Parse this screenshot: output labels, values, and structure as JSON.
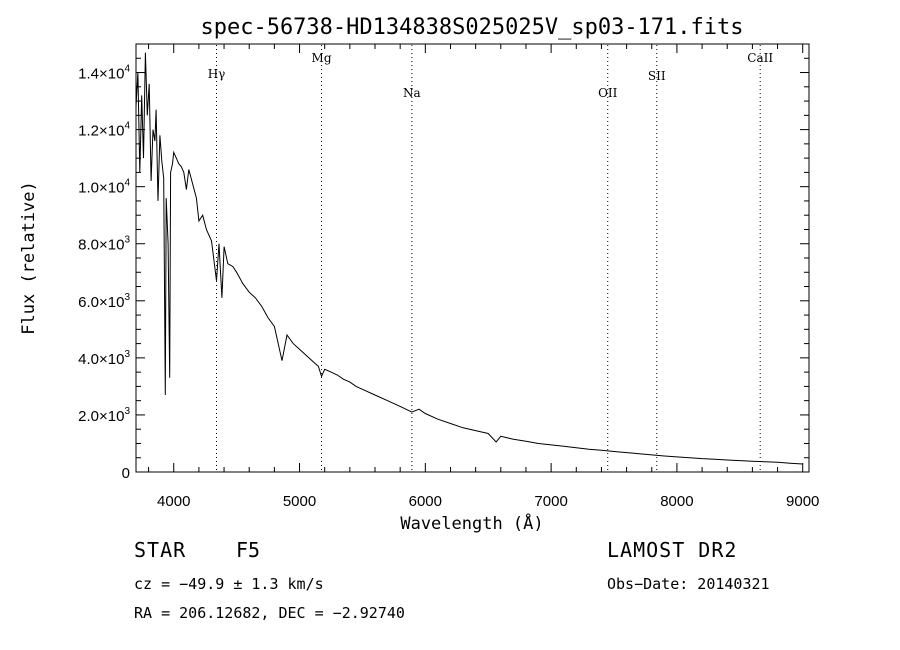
{
  "chart_data": {
    "type": "line",
    "title": "spec-56738-HD134838S025025V_sp03-171.fits",
    "xlabel": "Wavelength (Å)",
    "ylabel": "Flux (relative)",
    "xlim": [
      3700,
      9050
    ],
    "ylim": [
      0,
      15000
    ],
    "x_ticks": [
      4000,
      5000,
      6000,
      7000,
      8000,
      9000
    ],
    "y_ticks": [
      0,
      2000,
      4000,
      6000,
      8000,
      10000,
      12000,
      14000
    ],
    "y_tick_labels": [
      {
        "mant": "0",
        "exp": ""
      },
      {
        "mant": "2.0×10",
        "exp": "3"
      },
      {
        "mant": "4.0×10",
        "exp": "3"
      },
      {
        "mant": "6.0×10",
        "exp": "3"
      },
      {
        "mant": "8.0×10",
        "exp": "3"
      },
      {
        "mant": "1.0×10",
        "exp": "4"
      },
      {
        "mant": "1.2×10",
        "exp": "4"
      },
      {
        "mant": "1.4×10",
        "exp": "4"
      }
    ],
    "line_markers": [
      {
        "label": "Hγ",
        "wavelength": 4340
      },
      {
        "label": "Mg",
        "wavelength": 5175
      },
      {
        "label": "Na",
        "wavelength": 5893
      },
      {
        "label": "OII",
        "wavelength": 7450
      },
      {
        "label": "SII",
        "wavelength": 7840
      },
      {
        "label": "CaII",
        "wavelength": 8662
      }
    ],
    "series": [
      {
        "x": [
          3700,
          3715,
          3730,
          3745,
          3760,
          3775,
          3790,
          3805,
          3820,
          3835,
          3850,
          3860,
          3875,
          3890,
          3905,
          3920,
          3933,
          3940,
          3955,
          3968,
          3975,
          3990,
          4000,
          4020,
          4040,
          4060,
          4080,
          4101,
          4120,
          4150,
          4180,
          4200,
          4230,
          4260,
          4300,
          4340,
          4360,
          4383,
          4400,
          4430,
          4470,
          4500,
          4550,
          4600,
          4650,
          4700,
          4750,
          4800,
          4861,
          4900,
          4950,
          5000,
          5050,
          5100,
          5150,
          5175,
          5200,
          5250,
          5300,
          5350,
          5400,
          5450,
          5500,
          5600,
          5700,
          5800,
          5893,
          5950,
          6000,
          6100,
          6200,
          6300,
          6400,
          6500,
          6563,
          6600,
          6700,
          6800,
          6900,
          7000,
          7100,
          7200,
          7300,
          7400,
          7500,
          7600,
          7700,
          7800,
          7900,
          8000,
          8100,
          8200,
          8300,
          8400,
          8500,
          8600,
          8700,
          8800,
          8900,
          9000
        ],
        "y": [
          12800,
          14000,
          10500,
          13200,
          11000,
          14700,
          12500,
          13600,
          10200,
          12000,
          11600,
          12700,
          9500,
          11800,
          10900,
          10300,
          2700,
          9600,
          8000,
          3300,
          10500,
          10800,
          11200,
          11000,
          10800,
          10700,
          10500,
          9900,
          10600,
          10100,
          9600,
          8800,
          9000,
          8500,
          8100,
          6700,
          8000,
          6100,
          7900,
          7300,
          7200,
          7000,
          6600,
          6300,
          6100,
          5800,
          5400,
          5100,
          3900,
          4800,
          4500,
          4300,
          4100,
          3900,
          3700,
          3350,
          3600,
          3500,
          3400,
          3250,
          3150,
          3000,
          2900,
          2700,
          2500,
          2300,
          2100,
          2200,
          2050,
          1850,
          1700,
          1550,
          1450,
          1350,
          1050,
          1250,
          1150,
          1080,
          1000,
          950,
          900,
          850,
          800,
          760,
          720,
          680,
          640,
          600,
          560,
          530,
          500,
          470,
          450,
          420,
          400,
          380,
          360,
          340,
          310,
          280
        ]
      }
    ]
  },
  "info": {
    "object_class": "STAR",
    "object_type": "F5",
    "survey": "LAMOST DR2",
    "cz": "cz = −49.9 ± 1.3 km/s",
    "obs_date": "Obs−Date: 20140321",
    "coords": "RA = 206.12682, DEC =  −2.92740"
  }
}
